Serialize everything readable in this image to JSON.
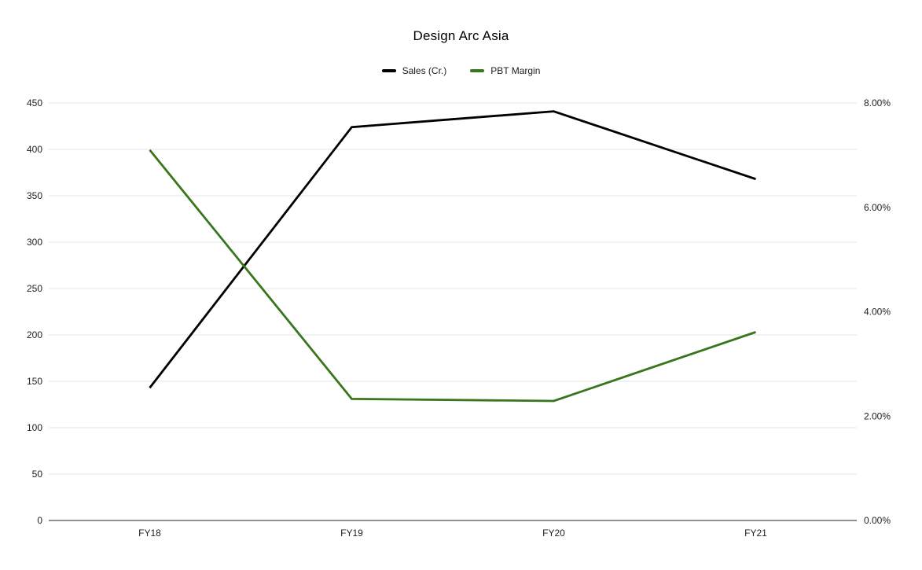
{
  "chart_data": {
    "type": "line",
    "title": "Design Arc Asia",
    "background": "#ffffff",
    "categories": [
      "FY18",
      "FY19",
      "FY20",
      "FY21"
    ],
    "series": [
      {
        "name": "Sales (Cr.)",
        "axis": "left",
        "color": "#000000",
        "values": [
          143,
          424,
          441,
          368
        ]
      },
      {
        "name": "PBT Margin",
        "axis": "right",
        "color": "#38761d",
        "unit": "percent",
        "values": [
          7.1,
          2.33,
          2.29,
          3.61
        ]
      }
    ],
    "left_axis": {
      "min": 0,
      "max": 450,
      "step": 50,
      "tick_labels": [
        "0",
        "50",
        "100",
        "150",
        "200",
        "250",
        "300",
        "350",
        "400",
        "450"
      ]
    },
    "right_axis": {
      "min": 0,
      "max": 8,
      "step": 2,
      "tick_labels": [
        "0.00%",
        "2.00%",
        "4.00%",
        "6.00%",
        "8.00%"
      ]
    },
    "legend_position": "top",
    "grid": true,
    "colors": {
      "gridline": "#e6e6e6",
      "axis_line": "#212121",
      "text": "#212121"
    }
  }
}
